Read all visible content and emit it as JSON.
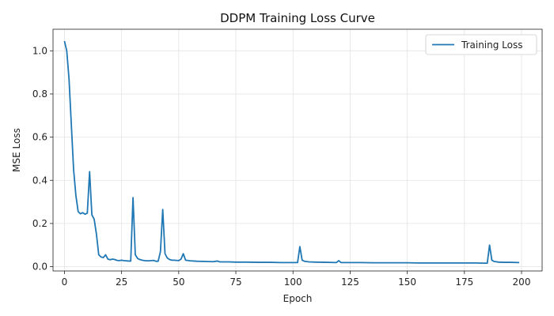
{
  "chart_data": {
    "type": "line",
    "title": "DDPM Training Loss Curve",
    "xlabel": "Epoch",
    "ylabel": "MSE Loss",
    "xlim": [
      -5,
      209
    ],
    "ylim": [
      -0.02,
      1.1
    ],
    "xticks": [
      0,
      25,
      50,
      75,
      100,
      125,
      150,
      175,
      200
    ],
    "yticks": [
      0.0,
      0.2,
      0.4,
      0.6,
      0.8,
      1.0
    ],
    "xtick_labels": [
      "0",
      "25",
      "50",
      "75",
      "100",
      "125",
      "150",
      "175",
      "200"
    ],
    "ytick_labels": [
      "0.0",
      "0.2",
      "0.4",
      "0.6",
      "0.8",
      "1.0"
    ],
    "grid": true,
    "legend": {
      "position": "top-right",
      "entries": [
        "Training Loss"
      ]
    },
    "series": [
      {
        "name": "Training Loss",
        "color": "#1f77b4",
        "points": [
          [
            0,
            1.045
          ],
          [
            1,
            1.0
          ],
          [
            2,
            0.87
          ],
          [
            3,
            0.66
          ],
          [
            4,
            0.45
          ],
          [
            5,
            0.33
          ],
          [
            6,
            0.255
          ],
          [
            7,
            0.245
          ],
          [
            8,
            0.25
          ],
          [
            9,
            0.243
          ],
          [
            10,
            0.248
          ],
          [
            11,
            0.44
          ],
          [
            12,
            0.24
          ],
          [
            13,
            0.22
          ],
          [
            14,
            0.15
          ],
          [
            15,
            0.055
          ],
          [
            16,
            0.045
          ],
          [
            17,
            0.042
          ],
          [
            18,
            0.055
          ],
          [
            19,
            0.035
          ],
          [
            20,
            0.032
          ],
          [
            21,
            0.035
          ],
          [
            22,
            0.033
          ],
          [
            23,
            0.029
          ],
          [
            24,
            0.028
          ],
          [
            25,
            0.03
          ],
          [
            26,
            0.028
          ],
          [
            27,
            0.027
          ],
          [
            28,
            0.026
          ],
          [
            29,
            0.026
          ],
          [
            30,
            0.32
          ],
          [
            31,
            0.055
          ],
          [
            32,
            0.038
          ],
          [
            33,
            0.033
          ],
          [
            34,
            0.03
          ],
          [
            35,
            0.028
          ],
          [
            36,
            0.027
          ],
          [
            37,
            0.027
          ],
          [
            38,
            0.028
          ],
          [
            39,
            0.029
          ],
          [
            40,
            0.025
          ],
          [
            41,
            0.025
          ],
          [
            42,
            0.07
          ],
          [
            43,
            0.265
          ],
          [
            44,
            0.06
          ],
          [
            45,
            0.04
          ],
          [
            46,
            0.033
          ],
          [
            47,
            0.03
          ],
          [
            48,
            0.03
          ],
          [
            49,
            0.029
          ],
          [
            50,
            0.028
          ],
          [
            51,
            0.035
          ],
          [
            52,
            0.06
          ],
          [
            53,
            0.03
          ],
          [
            55,
            0.027
          ],
          [
            58,
            0.025
          ],
          [
            62,
            0.024
          ],
          [
            65,
            0.023
          ],
          [
            67,
            0.026
          ],
          [
            68,
            0.022
          ],
          [
            72,
            0.022
          ],
          [
            75,
            0.021
          ],
          [
            80,
            0.021
          ],
          [
            85,
            0.02
          ],
          [
            90,
            0.02
          ],
          [
            95,
            0.019
          ],
          [
            100,
            0.019
          ],
          [
            102,
            0.019
          ],
          [
            103,
            0.093
          ],
          [
            104,
            0.03
          ],
          [
            105,
            0.025
          ],
          [
            107,
            0.022
          ],
          [
            110,
            0.021
          ],
          [
            115,
            0.02
          ],
          [
            119,
            0.019
          ],
          [
            120,
            0.028
          ],
          [
            121,
            0.019
          ],
          [
            125,
            0.019
          ],
          [
            130,
            0.019
          ],
          [
            135,
            0.018
          ],
          [
            140,
            0.018
          ],
          [
            145,
            0.018
          ],
          [
            150,
            0.018
          ],
          [
            155,
            0.017
          ],
          [
            160,
            0.017
          ],
          [
            165,
            0.017
          ],
          [
            170,
            0.017
          ],
          [
            175,
            0.017
          ],
          [
            180,
            0.017
          ],
          [
            184,
            0.016
          ],
          [
            185,
            0.016
          ],
          [
            186,
            0.1
          ],
          [
            187,
            0.03
          ],
          [
            188,
            0.024
          ],
          [
            190,
            0.021
          ],
          [
            192,
            0.02
          ],
          [
            195,
            0.02
          ],
          [
            199,
            0.019
          ]
        ]
      }
    ]
  }
}
